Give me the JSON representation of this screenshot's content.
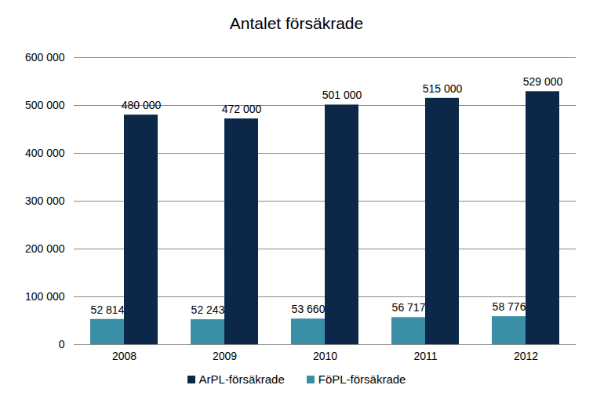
{
  "chart_data": {
    "type": "bar",
    "title": "Antalet försäkrade",
    "categories": [
      "2008",
      "2009",
      "2010",
      "2011",
      "2012"
    ],
    "series": [
      {
        "name": "FöPL-försäkrade",
        "color": "#3a8ea6",
        "values": [
          52814,
          52243,
          53660,
          56717,
          58776
        ],
        "value_labels": [
          "52 814",
          "52 243",
          "53 660",
          "56 717",
          "58 776"
        ]
      },
      {
        "name": "ArPL-försäkrade",
        "color": "#0c2849",
        "values": [
          480000,
          472000,
          501000,
          515000,
          529000
        ],
        "value_labels": [
          "480 000",
          "472 000",
          "501 000",
          "515 000",
          "529 000"
        ]
      }
    ],
    "ylim": [
      0,
      600000
    ],
    "yticks": [
      0,
      {
        "value": 100000,
        "label": "100 000"
      },
      {
        "value": 200000,
        "label": "200 000"
      },
      {
        "value": 300000,
        "label": "300 000"
      },
      {
        "value": 400000,
        "label": "400 000"
      },
      {
        "value": 500000,
        "label": "500 000"
      },
      {
        "value": 600000,
        "label": "600 000"
      }
    ],
    "grid": true,
    "legend": "bottom",
    "data_labels": true
  }
}
